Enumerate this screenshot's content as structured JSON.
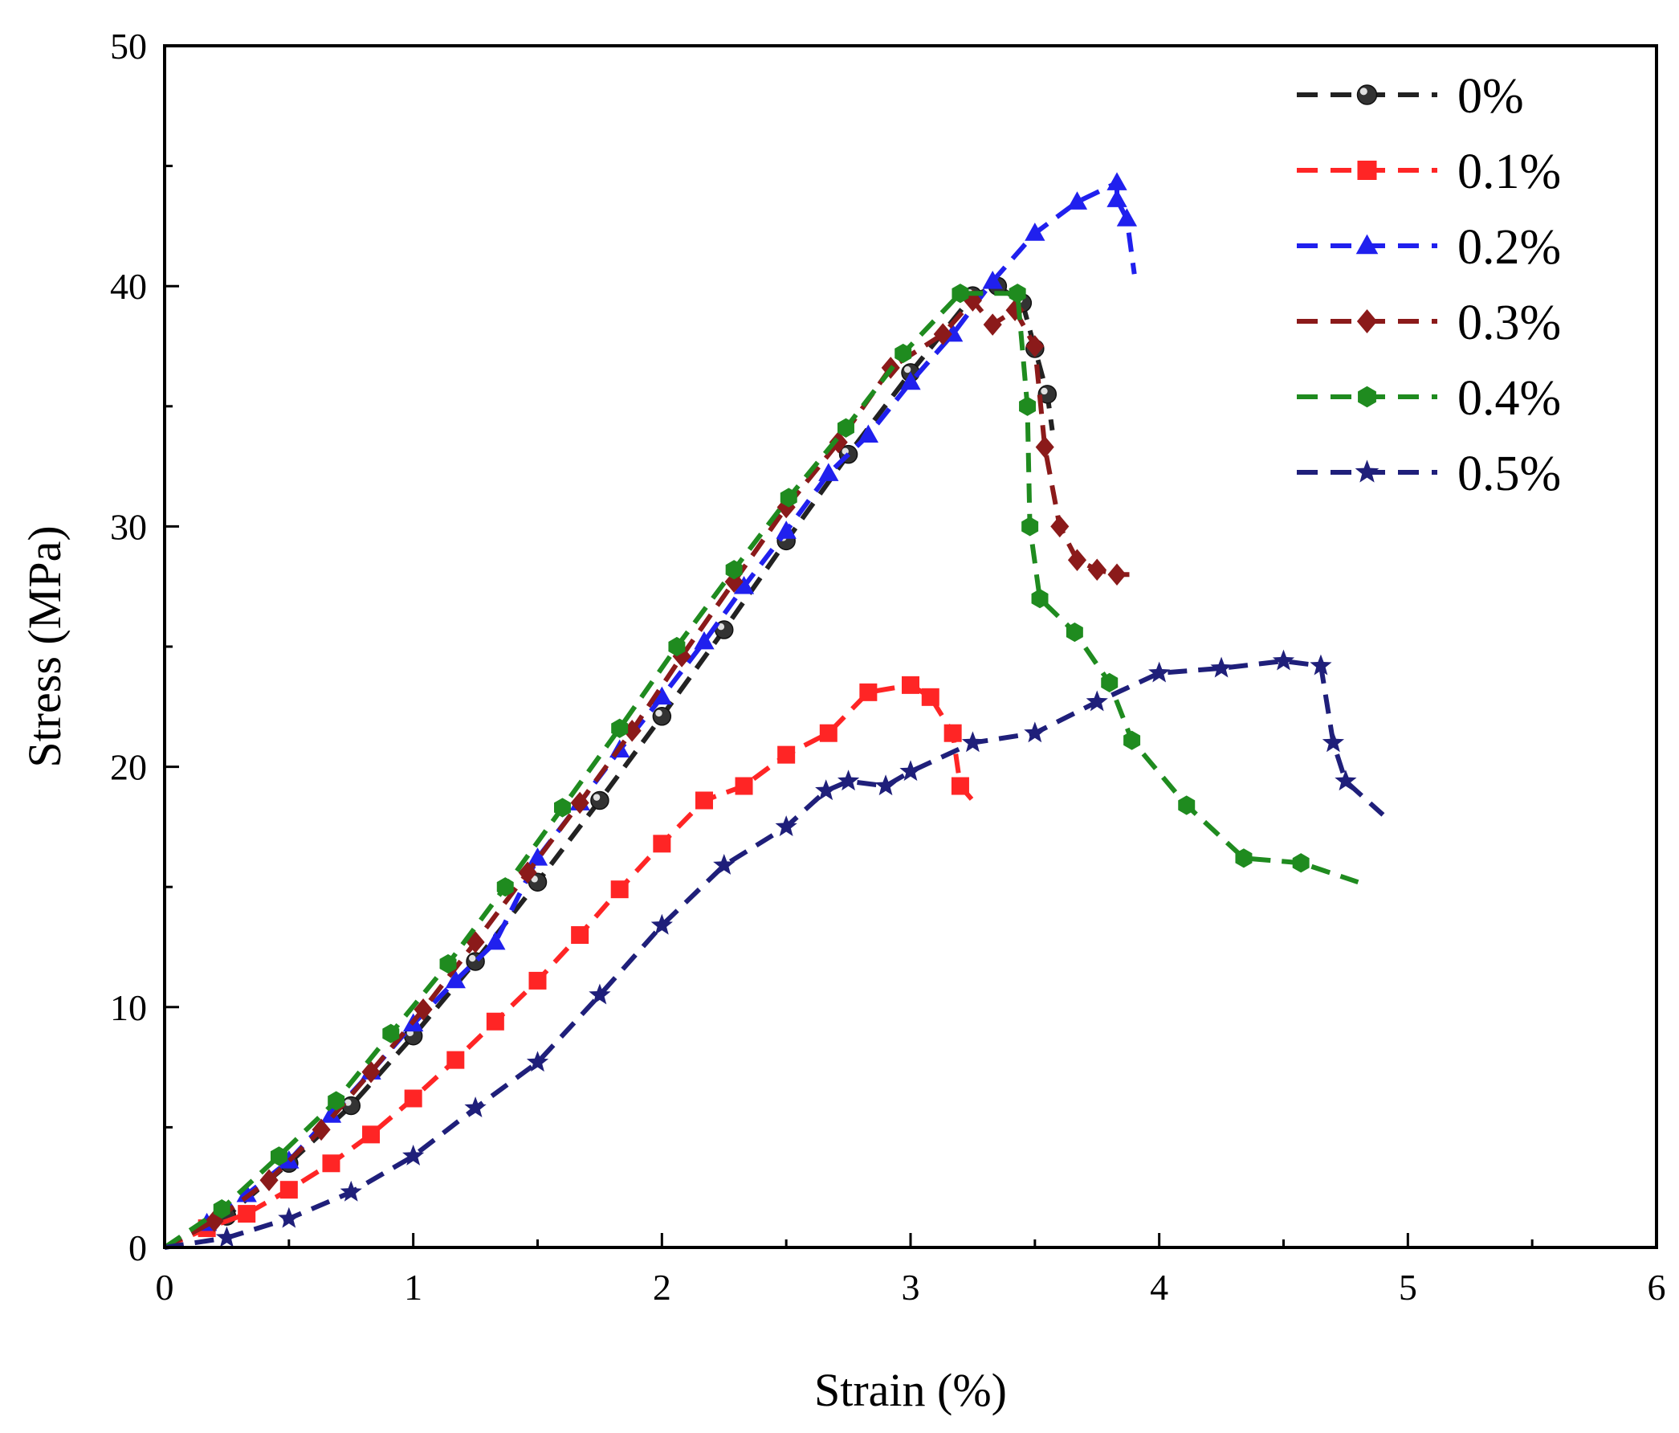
{
  "chart_data": {
    "type": "line",
    "xlabel": "Strain (%)",
    "ylabel": "Stress (MPa)",
    "xlim": [
      0,
      6
    ],
    "ylim": [
      0,
      50
    ],
    "xticks": [
      0,
      1,
      2,
      3,
      4,
      5,
      6
    ],
    "yticks": [
      0,
      10,
      20,
      30,
      40,
      50
    ],
    "grid": false,
    "legend_position": "top-right",
    "series": [
      {
        "name": "0%",
        "color": "#222222",
        "marker": "sphere",
        "points": [
          [
            0.0,
            0.0
          ],
          [
            0.25,
            1.3
          ],
          [
            0.5,
            3.5
          ],
          [
            0.75,
            5.9
          ],
          [
            1.0,
            8.8
          ],
          [
            1.25,
            11.9
          ],
          [
            1.5,
            15.2
          ],
          [
            1.75,
            18.6
          ],
          [
            2.0,
            22.1
          ],
          [
            2.25,
            25.7
          ],
          [
            2.5,
            29.4
          ],
          [
            2.75,
            33.0
          ],
          [
            3.0,
            36.4
          ],
          [
            3.25,
            39.6
          ],
          [
            3.35,
            40.0
          ],
          [
            3.45,
            39.3
          ],
          [
            3.5,
            37.4
          ],
          [
            3.55,
            35.5
          ],
          [
            3.57,
            34.0
          ]
        ]
      },
      {
        "name": "0.1%",
        "color": "#ff2525",
        "marker": "square",
        "points": [
          [
            0.0,
            0.0
          ],
          [
            0.17,
            0.8
          ],
          [
            0.33,
            1.4
          ],
          [
            0.5,
            2.4
          ],
          [
            0.67,
            3.5
          ],
          [
            0.83,
            4.7
          ],
          [
            1.0,
            6.2
          ],
          [
            1.17,
            7.8
          ],
          [
            1.33,
            9.4
          ],
          [
            1.5,
            11.1
          ],
          [
            1.67,
            13.0
          ],
          [
            1.83,
            14.9
          ],
          [
            2.0,
            16.8
          ],
          [
            2.17,
            18.6
          ],
          [
            2.33,
            19.2
          ],
          [
            2.5,
            20.5
          ],
          [
            2.67,
            21.4
          ],
          [
            2.83,
            23.1
          ],
          [
            3.0,
            23.4
          ],
          [
            3.08,
            22.9
          ],
          [
            3.17,
            21.4
          ],
          [
            3.2,
            19.2
          ],
          [
            3.25,
            18.6
          ]
        ]
      },
      {
        "name": "0.2%",
        "color": "#2020ee",
        "marker": "triangle",
        "points": [
          [
            0.0,
            0.0
          ],
          [
            0.17,
            1.0
          ],
          [
            0.33,
            2.2
          ],
          [
            0.5,
            3.6
          ],
          [
            0.67,
            5.5
          ],
          [
            0.83,
            7.3
          ],
          [
            1.0,
            9.3
          ],
          [
            1.17,
            11.1
          ],
          [
            1.33,
            12.7
          ],
          [
            1.5,
            16.2
          ],
          [
            1.67,
            18.5
          ],
          [
            1.83,
            20.7
          ],
          [
            2.0,
            22.9
          ],
          [
            2.17,
            25.2
          ],
          [
            2.33,
            27.5
          ],
          [
            2.5,
            29.8
          ],
          [
            2.67,
            32.2
          ],
          [
            2.83,
            33.8
          ],
          [
            3.0,
            36.0
          ],
          [
            3.17,
            38.0
          ],
          [
            3.33,
            40.2
          ],
          [
            3.5,
            42.2
          ],
          [
            3.67,
            43.5
          ],
          [
            3.83,
            44.3
          ],
          [
            3.83,
            43.6
          ],
          [
            3.87,
            42.8
          ],
          [
            3.9,
            40.5
          ]
        ]
      },
      {
        "name": "0.3%",
        "color": "#8b1a1a",
        "marker": "diamond",
        "points": [
          [
            0.0,
            0.0
          ],
          [
            0.2,
            1.1
          ],
          [
            0.42,
            2.8
          ],
          [
            0.63,
            4.9
          ],
          [
            0.83,
            7.3
          ],
          [
            1.04,
            9.9
          ],
          [
            1.25,
            12.7
          ],
          [
            1.46,
            15.6
          ],
          [
            1.67,
            18.5
          ],
          [
            1.88,
            21.5
          ],
          [
            2.08,
            24.6
          ],
          [
            2.29,
            27.7
          ],
          [
            2.5,
            30.8
          ],
          [
            2.71,
            33.5
          ],
          [
            2.92,
            36.6
          ],
          [
            3.13,
            38.0
          ],
          [
            3.25,
            39.4
          ],
          [
            3.33,
            38.4
          ],
          [
            3.42,
            39.0
          ],
          [
            3.5,
            37.5
          ],
          [
            3.54,
            33.3
          ],
          [
            3.6,
            30.0
          ],
          [
            3.67,
            28.6
          ],
          [
            3.75,
            28.2
          ],
          [
            3.83,
            28.0
          ],
          [
            3.88,
            28.0
          ]
        ]
      },
      {
        "name": "0.4%",
        "color": "#1f8b1f",
        "marker": "hexagon",
        "points": [
          [
            0.0,
            0.0
          ],
          [
            0.23,
            1.6
          ],
          [
            0.46,
            3.8
          ],
          [
            0.69,
            6.1
          ],
          [
            0.91,
            8.9
          ],
          [
            1.14,
            11.8
          ],
          [
            1.37,
            15.0
          ],
          [
            1.6,
            18.3
          ],
          [
            1.83,
            21.6
          ],
          [
            2.06,
            25.0
          ],
          [
            2.29,
            28.2
          ],
          [
            2.51,
            31.2
          ],
          [
            2.74,
            34.1
          ],
          [
            2.97,
            37.2
          ],
          [
            3.2,
            39.7
          ],
          [
            3.43,
            39.7
          ],
          [
            3.47,
            35.0
          ],
          [
            3.48,
            30.0
          ],
          [
            3.52,
            27.0
          ],
          [
            3.66,
            25.6
          ],
          [
            3.8,
            23.5
          ],
          [
            3.89,
            21.1
          ],
          [
            4.11,
            18.4
          ],
          [
            4.34,
            16.2
          ],
          [
            4.57,
            16.0
          ],
          [
            4.8,
            15.2
          ]
        ]
      },
      {
        "name": "0.5%",
        "color": "#1f1f7a",
        "marker": "star",
        "points": [
          [
            0.0,
            0.0
          ],
          [
            0.25,
            0.4
          ],
          [
            0.5,
            1.2
          ],
          [
            0.75,
            2.3
          ],
          [
            1.0,
            3.8
          ],
          [
            1.25,
            5.8
          ],
          [
            1.5,
            7.7
          ],
          [
            1.75,
            10.5
          ],
          [
            2.0,
            13.4
          ],
          [
            2.25,
            15.9
          ],
          [
            2.5,
            17.5
          ],
          [
            2.66,
            19.0
          ],
          [
            2.75,
            19.4
          ],
          [
            2.9,
            19.2
          ],
          [
            3.0,
            19.8
          ],
          [
            3.25,
            21.0
          ],
          [
            3.5,
            21.4
          ],
          [
            3.75,
            22.7
          ],
          [
            4.0,
            23.9
          ],
          [
            4.25,
            24.1
          ],
          [
            4.5,
            24.4
          ],
          [
            4.65,
            24.2
          ],
          [
            4.7,
            21.0
          ],
          [
            4.75,
            19.4
          ],
          [
            4.9,
            18.0
          ]
        ]
      }
    ]
  }
}
